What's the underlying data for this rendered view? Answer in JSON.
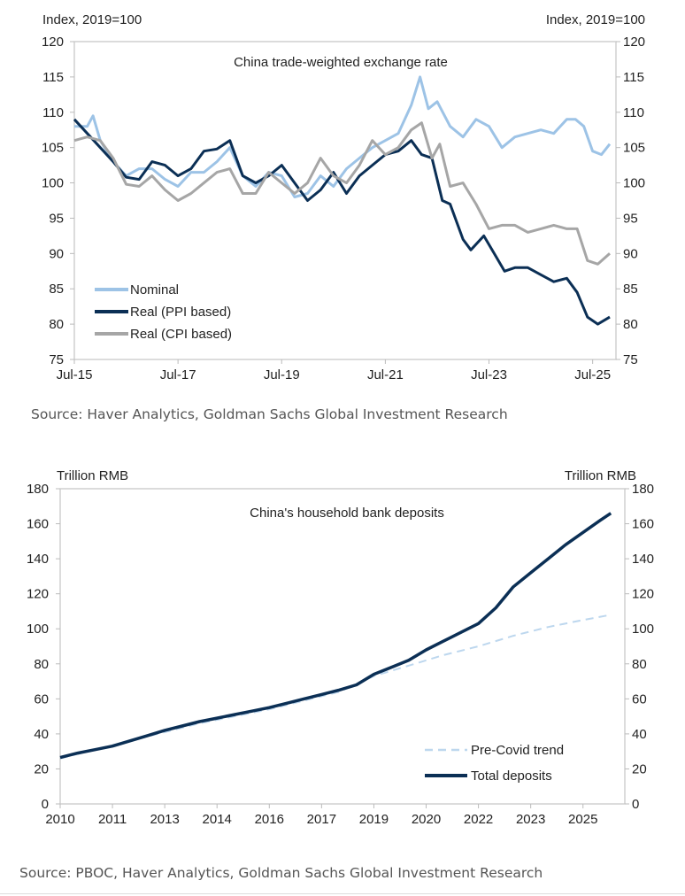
{
  "chart_data": [
    {
      "type": "line",
      "title": "China trade-weighted exchange rate",
      "ylabel_left": "Index, 2019=100",
      "ylabel_right": "Index, 2019=100",
      "ylim": [
        75,
        120
      ],
      "yticks": [
        "75",
        "80",
        "85",
        "90",
        "95",
        "100",
        "105",
        "110",
        "115",
        "120"
      ],
      "xlim": [
        2015.5,
        2025.95
      ],
      "xticks": [
        {
          "x": 2015.5,
          "label": "Jul-15"
        },
        {
          "x": 2017.5,
          "label": "Jul-17"
        },
        {
          "x": 2019.5,
          "label": "Jul-19"
        },
        {
          "x": 2021.5,
          "label": "Jul-21"
        },
        {
          "x": 2023.5,
          "label": "Jul-23"
        },
        {
          "x": 2025.5,
          "label": "Jul-25"
        }
      ],
      "legend_position": "bottom-left",
      "series": [
        {
          "name": "Nominal",
          "color": "#9dc3e6",
          "x": [
            2015.5,
            2015.75,
            2015.86,
            2016.0,
            2016.25,
            2016.5,
            2016.75,
            2017.0,
            2017.25,
            2017.5,
            2017.75,
            2018.0,
            2018.25,
            2018.5,
            2018.75,
            2019.0,
            2019.25,
            2019.5,
            2019.75,
            2020.0,
            2020.25,
            2020.5,
            2020.75,
            2021.0,
            2021.25,
            2021.5,
            2021.75,
            2022.0,
            2022.17,
            2022.33,
            2022.5,
            2022.75,
            2023.0,
            2023.25,
            2023.5,
            2023.75,
            2024.0,
            2024.25,
            2024.5,
            2024.75,
            2025.0,
            2025.17,
            2025.33,
            2025.5,
            2025.67,
            2025.83
          ],
          "values": [
            108,
            108,
            109.5,
            106,
            103,
            101,
            102,
            102,
            100.5,
            99.5,
            101.5,
            101.5,
            103,
            105,
            101,
            99.5,
            101.5,
            101,
            98,
            98.5,
            101,
            99.5,
            102,
            103.5,
            105,
            106,
            107,
            111,
            115,
            110.5,
            111.5,
            108,
            106.5,
            109,
            108,
            105,
            106.5,
            107,
            107.5,
            107,
            109,
            109,
            108,
            104.5,
            104,
            105.5
          ]
        },
        {
          "name": "Real (PPI based)",
          "color": "#0b2f55",
          "x": [
            2015.5,
            2015.75,
            2016.0,
            2016.25,
            2016.5,
            2016.75,
            2017.0,
            2017.25,
            2017.5,
            2017.75,
            2018.0,
            2018.25,
            2018.5,
            2018.75,
            2019.0,
            2019.25,
            2019.5,
            2019.75,
            2020.0,
            2020.25,
            2020.5,
            2020.75,
            2021.0,
            2021.25,
            2021.5,
            2021.75,
            2022.0,
            2022.2,
            2022.4,
            2022.6,
            2022.75,
            2023.0,
            2023.15,
            2023.4,
            2023.6,
            2023.8,
            2024.0,
            2024.25,
            2024.5,
            2024.75,
            2025.0,
            2025.2,
            2025.4,
            2025.6,
            2025.83
          ],
          "values": [
            109,
            107,
            105,
            103,
            100.8,
            100.5,
            103,
            102.5,
            101,
            102,
            104.5,
            104.8,
            106,
            101,
            100,
            101,
            102.5,
            100,
            97.5,
            99,
            101.5,
            98.5,
            101,
            102.5,
            104,
            104.5,
            106,
            104,
            103.5,
            97.5,
            97,
            92,
            90.5,
            92.5,
            90,
            87.5,
            88,
            88,
            87,
            86,
            86.5,
            84.5,
            81,
            80,
            81
          ]
        },
        {
          "name": "Real (CPI based)",
          "color": "#a6a6a6",
          "x": [
            2015.5,
            2015.75,
            2016.0,
            2016.25,
            2016.5,
            2016.75,
            2017.0,
            2017.25,
            2017.5,
            2017.75,
            2018.0,
            2018.25,
            2018.5,
            2018.75,
            2019.0,
            2019.25,
            2019.5,
            2019.75,
            2020.0,
            2020.25,
            2020.5,
            2020.75,
            2021.0,
            2021.25,
            2021.5,
            2021.75,
            2022.0,
            2022.2,
            2022.4,
            2022.55,
            2022.75,
            2023.0,
            2023.25,
            2023.5,
            2023.75,
            2024.0,
            2024.25,
            2024.5,
            2024.75,
            2025.0,
            2025.2,
            2025.4,
            2025.6,
            2025.83
          ],
          "values": [
            106,
            106.5,
            106,
            103.5,
            99.8,
            99.5,
            101,
            99,
            97.5,
            98.5,
            100,
            101.5,
            102,
            98.5,
            98.5,
            101.5,
            100,
            98.5,
            100,
            103.5,
            101,
            100,
            102.5,
            106,
            104,
            105,
            107.5,
            108.5,
            103.5,
            105.5,
            99.5,
            100,
            97,
            93.5,
            94,
            94,
            93,
            93.5,
            94,
            93.5,
            93.5,
            89,
            88.5,
            90
          ]
        }
      ],
      "source": "Source: Haver Analytics, Goldman Sachs Global Investment Research"
    },
    {
      "type": "line",
      "title": "China's household bank deposits",
      "ylabel_left": "Trillion RMB",
      "ylabel_right": "Trillion RMB",
      "ylim": [
        0,
        180
      ],
      "yticks": [
        "0",
        "20",
        "40",
        "60",
        "80",
        "100",
        "120",
        "140",
        "160",
        "180"
      ],
      "xlim": [
        2010.0,
        2026.2
      ],
      "xticks": [
        {
          "x": 2010.0,
          "label": "2010"
        },
        {
          "x": 2011.5,
          "label": "2011"
        },
        {
          "x": 2013.0,
          "label": "2013"
        },
        {
          "x": 2014.5,
          "label": "2014"
        },
        {
          "x": 2016.0,
          "label": "2016"
        },
        {
          "x": 2017.5,
          "label": "2017"
        },
        {
          "x": 2019.0,
          "label": "2019"
        },
        {
          "x": 2020.5,
          "label": "2020"
        },
        {
          "x": 2022.0,
          "label": "2022"
        },
        {
          "x": 2023.5,
          "label": "2023"
        },
        {
          "x": 2025.0,
          "label": "2025"
        }
      ],
      "legend_position": "bottom-right",
      "series": [
        {
          "name": "Pre-Covid trend",
          "color": "#bdd7ee",
          "dashed": true,
          "x": [
            2010.0,
            2012.0,
            2014.0,
            2016.0,
            2018.0,
            2019.0,
            2020.0,
            2021.0,
            2022.0,
            2023.0,
            2024.0,
            2025.0,
            2025.8
          ],
          "values": [
            26,
            36,
            46,
            54,
            64,
            73,
            79,
            85,
            90,
            96,
            101,
            105,
            108
          ]
        },
        {
          "name": "Total deposits",
          "color": "#0b2f55",
          "x": [
            2010.0,
            2010.5,
            2011.0,
            2011.5,
            2012.0,
            2012.5,
            2013.0,
            2013.5,
            2014.0,
            2014.5,
            2015.0,
            2015.5,
            2016.0,
            2016.5,
            2017.0,
            2017.5,
            2018.0,
            2018.5,
            2019.0,
            2019.5,
            2020.0,
            2020.5,
            2021.0,
            2021.5,
            2022.0,
            2022.5,
            2023.0,
            2023.5,
            2024.0,
            2024.5,
            2025.0,
            2025.5,
            2025.8
          ],
          "values": [
            26.5,
            29,
            31,
            33,
            36,
            39,
            42,
            44.5,
            47,
            49,
            51,
            53,
            55,
            57.5,
            60,
            62.5,
            65,
            68,
            74,
            78,
            82,
            88,
            93,
            98,
            103,
            112,
            124,
            132,
            140,
            148,
            155,
            162,
            166
          ]
        }
      ],
      "source": "Source: PBOC, Haver Analytics, Goldman Sachs Global Investment Research"
    }
  ]
}
